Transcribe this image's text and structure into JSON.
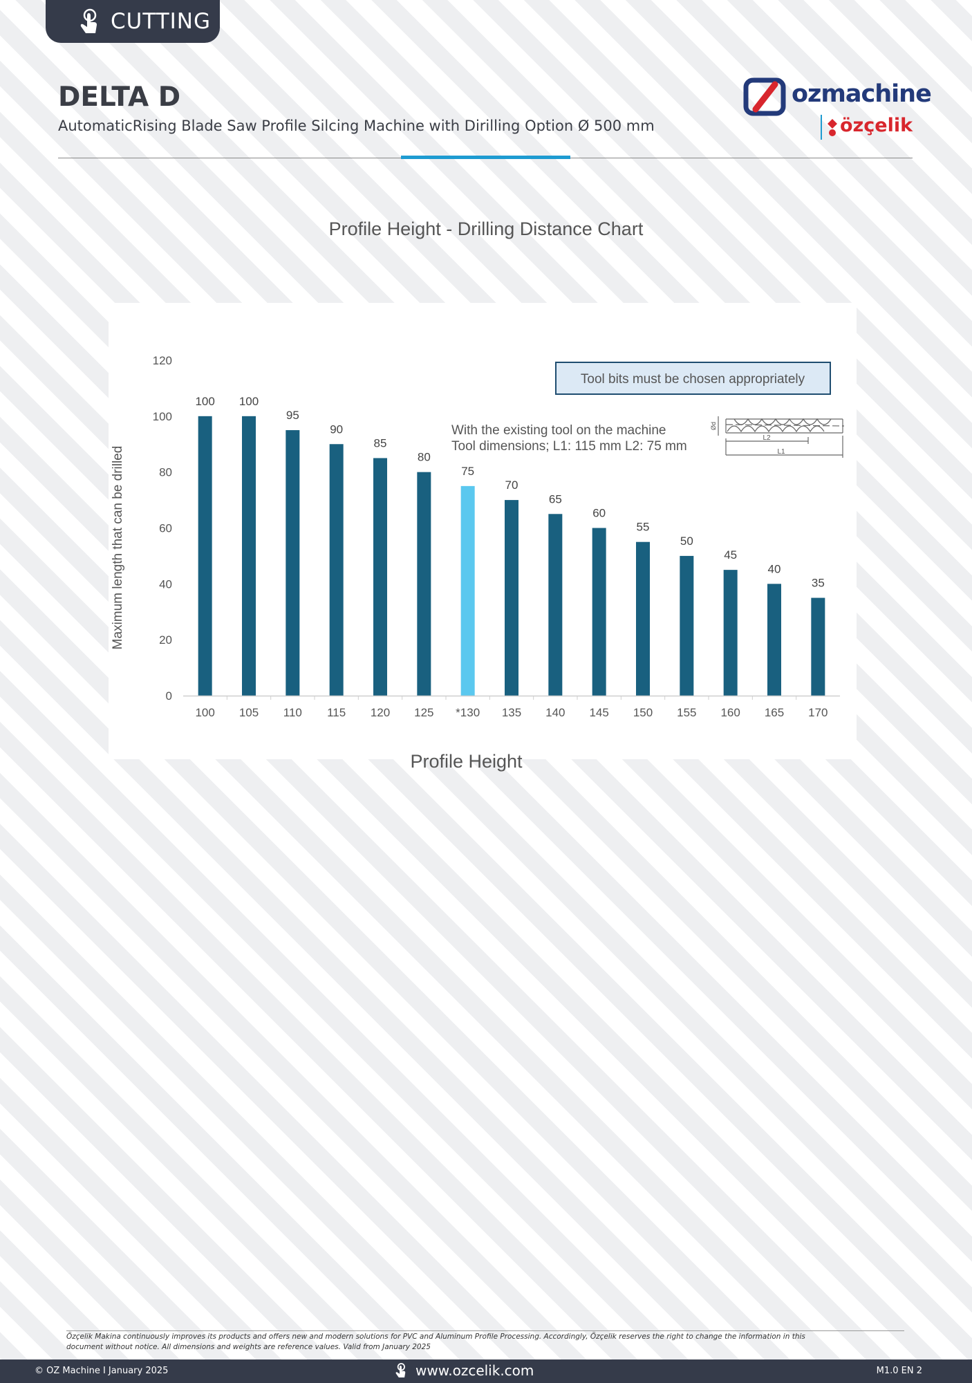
{
  "header": {
    "category": "CUTTING",
    "title": "DELTA D",
    "subtitle": "AutomaticRising Blade Saw Profile Silcing Machine with Dirilling Option Ø 500 mm",
    "brand": "ozmachine",
    "sub_brand": "özçelik",
    "icon": "hand-pointer-icon"
  },
  "chart_data": {
    "type": "bar",
    "title": "Profile Height - Drilling Distance Chart",
    "xlabel": "Profile Height",
    "ylabel": "Maximum length that can be drilled",
    "categories": [
      "100",
      "105",
      "110",
      "115",
      "120",
      "125",
      "*130",
      "135",
      "140",
      "145",
      "150",
      "155",
      "160",
      "165",
      "170"
    ],
    "values": [
      100,
      100,
      95,
      90,
      85,
      80,
      75,
      70,
      65,
      60,
      55,
      50,
      45,
      40,
      35
    ],
    "highlight_index": 6,
    "ylim": [
      0,
      120
    ],
    "yticks": [
      0,
      20,
      40,
      60,
      80,
      100,
      120
    ],
    "grid": false,
    "colors": {
      "bar": "#19607f",
      "highlight": "#5bc8ef",
      "note_bg": "#dce9f5",
      "note_border": "#1f4d70"
    },
    "note_box": "Tool bits must be chosen appropriately",
    "annotation_lines": [
      "With the existing tool on the machine",
      "Tool dimensions; L1: 115 mm L2: 75 mm"
    ],
    "tool_labels": {
      "d": "Ød",
      "l1": "L1",
      "l2": "L2"
    }
  },
  "footer": {
    "note": "Özçelik Makina continuously improves its products and offers new and modern solutions for PVC and Aluminum Profile Processing. Accordingly, Özçelik reserves the right to change the information in this document without notice. All dimensions and weights are reference values. Valid from January 2025",
    "copyright": "© OZ Machine I January 2025",
    "website": "www.ozcelik.com",
    "version": "M1.0 EN 2"
  }
}
